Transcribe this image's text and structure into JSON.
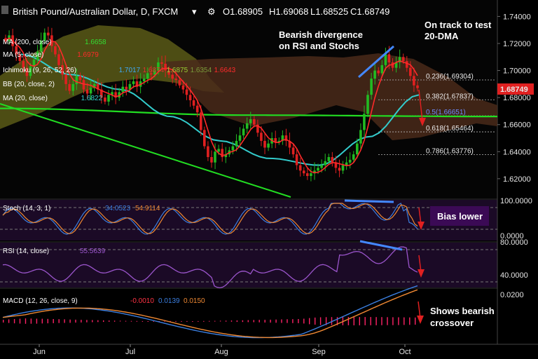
{
  "header": {
    "symbol": "British Pound/Australian Dollar, D, FXCM",
    "ohlc": {
      "o_label": "O",
      "o": "1.68905",
      "h_label": "H",
      "h": "1.69068",
      "l_label": "L",
      "l": "1.68525",
      "c_label": "C",
      "c": "1.68749"
    }
  },
  "indicators": [
    {
      "label": "Ichimoku (9, 26, 52, 26)",
      "values": [
        "1.7017",
        "1.6874",
        "1.6875",
        "1.6354",
        "1.6643"
      ],
      "colors": [
        "#3fa9f5",
        "#e03030",
        "#99cc33",
        "#7a9a3a",
        "#ff2a2a"
      ]
    },
    {
      "label": "MA (5, close)",
      "values": [
        "1.6979"
      ],
      "colors": [
        "#ff2a2a"
      ]
    },
    {
      "label": "MA (200, close)",
      "values": [
        "1.6658"
      ],
      "colors": [
        "#33dd33"
      ]
    },
    {
      "label": "BB (20, close, 2)",
      "values": [],
      "colors": []
    },
    {
      "label": "MA (20, close)",
      "values": [
        "1.6822"
      ],
      "colors": [
        "#33cccc"
      ]
    }
  ],
  "annotations": {
    "divergence": [
      "Bearish divergence",
      "on RSI and Stochs"
    ],
    "target": [
      "On track to test",
      "20-DMA"
    ],
    "bias": "Bias lower",
    "macd_note": [
      "Shows bearish",
      "crossover"
    ]
  },
  "fib_levels": [
    {
      "label": "0.236(1.69304)",
      "value": 1.69304
    },
    {
      "label": "0.382(1.67837)",
      "value": 1.67837
    },
    {
      "label": "0.5(1.66651)",
      "value": 1.66651
    },
    {
      "label": "0.618(1.65464)",
      "value": 1.65464
    },
    {
      "label": "0.786(1.63776)",
      "value": 1.63776
    }
  ],
  "price_tag": "1.68749",
  "colors": {
    "up": "#22bb22",
    "down": "#e02020",
    "ma20": "#33cccc",
    "ma200": "#22dd22",
    "ma5": "#ff2a2a",
    "trend": "#22dd22",
    "divergence": "#4488ff",
    "cloud_bull": "#5a5a18",
    "cloud_bear": "#4a2a1a",
    "stoch_k": "#3b7fe0",
    "stoch_d": "#ee8833",
    "rsi": "#9b55cc",
    "macd": "#3b7fe0",
    "signal": "#ee8833",
    "hist": "#ff2266"
  },
  "chart_data": [
    {
      "type": "candlestick",
      "title": "British Pound/Australian Dollar, D, FXCM",
      "x_ticks": [
        "Jun",
        "Jul",
        "Aug",
        "Sep",
        "Oct"
      ],
      "y_ticks": [
        1.74,
        1.72,
        1.7,
        1.68,
        1.66,
        1.64,
        1.62
      ],
      "ylim": [
        1.608,
        1.748
      ],
      "closes": [
        1.722,
        1.726,
        1.718,
        1.712,
        1.707,
        1.702,
        1.696,
        1.703,
        1.708,
        1.714,
        1.722,
        1.728,
        1.726,
        1.718,
        1.712,
        1.704,
        1.697,
        1.69,
        1.685,
        1.69,
        1.696,
        1.693,
        1.686,
        1.683,
        1.687,
        1.69,
        1.686,
        1.68,
        1.677,
        1.682,
        1.684,
        1.68,
        1.684,
        1.688,
        1.686,
        1.69,
        1.692,
        1.688,
        1.692,
        1.694,
        1.698,
        1.697,
        1.7,
        1.706,
        1.705,
        1.7,
        1.697,
        1.694,
        1.693,
        1.689,
        1.686,
        1.682,
        1.678,
        1.674,
        1.669,
        1.656,
        1.644,
        1.636,
        1.632,
        1.64,
        1.642,
        1.636,
        1.638,
        1.641,
        1.644,
        1.648,
        1.652,
        1.657,
        1.661,
        1.664,
        1.66,
        1.654,
        1.648,
        1.643,
        1.646,
        1.65,
        1.647,
        1.648,
        1.652,
        1.648,
        1.643,
        1.638,
        1.63,
        1.626,
        1.624,
        1.622,
        1.624,
        1.626,
        1.628,
        1.63,
        1.633,
        1.636,
        1.632,
        1.628,
        1.626,
        1.63,
        1.632,
        1.634,
        1.638,
        1.646,
        1.656,
        1.668,
        1.682,
        1.694,
        1.7,
        1.698,
        1.704,
        1.712,
        1.706,
        1.702,
        1.706,
        1.71,
        1.707,
        1.702,
        1.696,
        1.689,
        1.687
      ],
      "series": [
        {
          "name": "MA (200, close)",
          "values": [
            1.672,
            1.667,
            1.666
          ]
        },
        {
          "name": "MA (20, close)",
          "values": [
            1.712,
            1.697,
            1.686,
            1.666,
            1.648,
            1.635,
            1.63,
            1.651,
            1.682
          ]
        }
      ],
      "fib_levels": [
        1.69304,
        1.67837,
        1.66651,
        1.65464,
        1.63776
      ]
    },
    {
      "type": "line",
      "name": "Stoch (14, 3, 1)",
      "values_labels": [
        "34.0523",
        "54.9114"
      ],
      "y_ticks": [
        "100.0000",
        "0.0000"
      ],
      "ylim": [
        0,
        100
      ]
    },
    {
      "type": "line",
      "name": "RSI (14, close)",
      "values_labels": [
        "55.5639"
      ],
      "y_ticks": [
        "80.0000",
        "40.0000"
      ],
      "ylim": [
        20,
        85
      ]
    },
    {
      "type": "line",
      "name": "MACD (12, 26, close, 9)",
      "values_labels": [
        "-0.0010",
        "0.0139",
        "0.0150"
      ],
      "y_ticks": [
        "0.0200"
      ]
    }
  ]
}
